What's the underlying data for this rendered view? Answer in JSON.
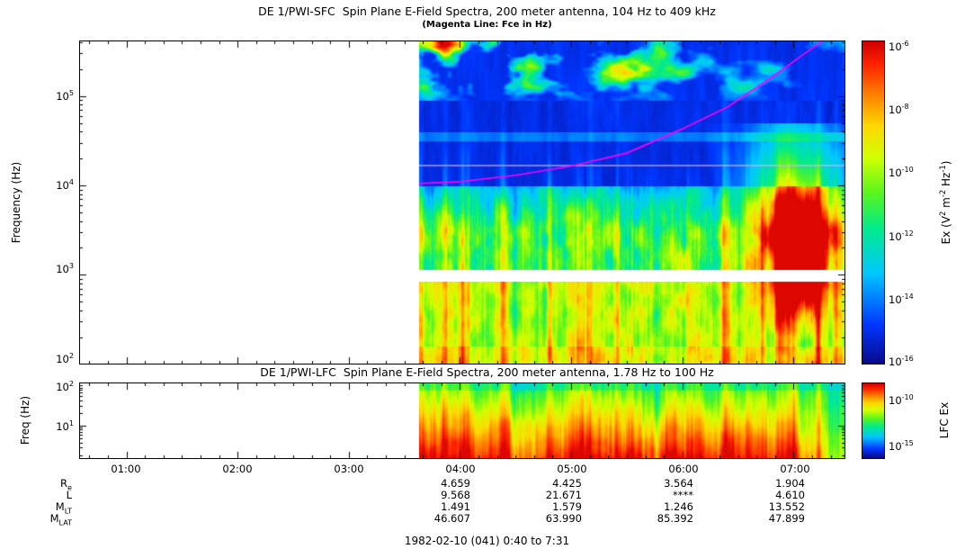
{
  "titles": {
    "sfc": "DE 1/PWI-SFC  Spin Plane E-Field Spectra, 200 meter antenna, 104 Hz to 409 kHz",
    "sfc_note": "(Magenta Line: Fce in Hz)",
    "lfc": "DE 1/PWI-LFC  Spin Plane E-Field Spectra, 200 meter antenna, 1.78 Hz to 100 Hz",
    "footer": "1982-02-10 (041) 0:40 to 7:31"
  },
  "axes": {
    "sfc": {
      "ylabel": "Frequency (Hz)",
      "yticks": [
        "10^{5}",
        "10^{4}",
        "10^{3}",
        "10^{2}"
      ]
    },
    "lfc": {
      "ylabel": "Freq (Hz)",
      "yticks": [
        "10^{2}",
        "10^{1}"
      ]
    },
    "time_ticks": [
      "01:00",
      "02:00",
      "03:00",
      "04:00",
      "05:00",
      "06:00",
      "07:00"
    ]
  },
  "colorbars": {
    "sfc": {
      "label": "Ex (V^{2} m^{-2} Hz^{-1})",
      "ticks": [
        "10^{-6}",
        "10^{-8}",
        "10^{-10}",
        "10^{-12}",
        "10^{-14}",
        "10^{-16}"
      ]
    },
    "lfc": {
      "label": "LFC Ex",
      "ticks": [
        "10^{-10}",
        "10^{-15}"
      ]
    }
  },
  "ephemeris": {
    "rows": [
      {
        "label": "R_{e}",
        "values": [
          "4.659",
          "4.425",
          "3.564",
          "1.904"
        ]
      },
      {
        "label": "L",
        "values": [
          "9.568",
          "21.671",
          "****",
          "4.610"
        ]
      },
      {
        "label": "M_{LT}",
        "values": [
          "1.491",
          "1.579",
          "1.246",
          "13.552"
        ]
      },
      {
        "label": "M_{LAT}",
        "values": [
          "46.607",
          "63.990",
          "85.392",
          "47.899"
        ]
      }
    ]
  },
  "chart_data": {
    "type": "heatmap",
    "panels": [
      {
        "id": "sfc",
        "title": "DE 1/PWI-SFC  Spin Plane E-Field Spectra, 200 meter antenna, 104 Hz to 409 kHz",
        "x_axis": {
          "start_hour": 0.583,
          "end_hour": 7.45,
          "ticks": [
            "01:00",
            "02:00",
            "03:00",
            "04:00",
            "05:00",
            "06:00",
            "07:00"
          ]
        },
        "y_axis": {
          "label": "Frequency (Hz)",
          "scale": "log",
          "min_hz": 104,
          "max_hz": 409000,
          "ticks": [
            "10^2",
            "10^3",
            "10^4",
            "10^5"
          ]
        },
        "z_axis": {
          "label": "Ex (V^2 m^-2 Hz^-1)",
          "min": 1e-16,
          "max": 1e-06,
          "colormap": "rainbow"
        },
        "data_start_hour": 3.63,
        "data_end_hour": 7.45,
        "no_data_gap_log10hz": [
          2.93,
          3.06
        ],
        "interference_line_log10hz": 4.23,
        "features": [
          "Auroral kilometric radiation patches above ~80 kHz, strongest 03:40-05:30",
          "Broadband bursty emission 1-10 kHz with vertical striations",
          "Intense funnel-shaped emission 06:50-07:20 below ~30 kHz",
          "No-data gap near 1 kHz between SFC bands",
          "Narrow lavender interference line near 17 kHz"
        ]
      },
      {
        "id": "lfc",
        "title": "DE 1/PWI-LFC  Spin Plane E-Field Spectra, 200 meter antenna, 1.78 Hz to 100 Hz",
        "x_axis": {
          "start_hour": 0.583,
          "end_hour": 7.45
        },
        "y_axis": {
          "label": "Freq (Hz)",
          "scale": "log",
          "min_hz": 1.78,
          "max_hz": 100,
          "ticks": [
            "10^1",
            "10^2"
          ]
        },
        "z_axis": {
          "label": "LFC Ex",
          "tick_labels": [
            "10^-10",
            "10^-15"
          ],
          "colormap": "rainbow"
        },
        "data_start_hour": 3.63,
        "data_end_hour": 7.45,
        "features": [
          "Broadband ELF emission, most intense below ~10 Hz",
          "Strong red burst columns throughout interval",
          "Emission weakens to green/cyan after ~07:00"
        ]
      }
    ],
    "fce_line": {
      "label": "Fce in Hz",
      "color": "#ff00ff",
      "points": [
        [
          3.63,
          10500
        ],
        [
          4.0,
          11000
        ],
        [
          4.5,
          13000
        ],
        [
          5.0,
          16500
        ],
        [
          5.5,
          23000
        ],
        [
          6.0,
          43000
        ],
        [
          6.4,
          75000
        ],
        [
          6.8,
          160000
        ],
        [
          7.1,
          300000
        ],
        [
          7.4,
          550000
        ]
      ]
    }
  }
}
